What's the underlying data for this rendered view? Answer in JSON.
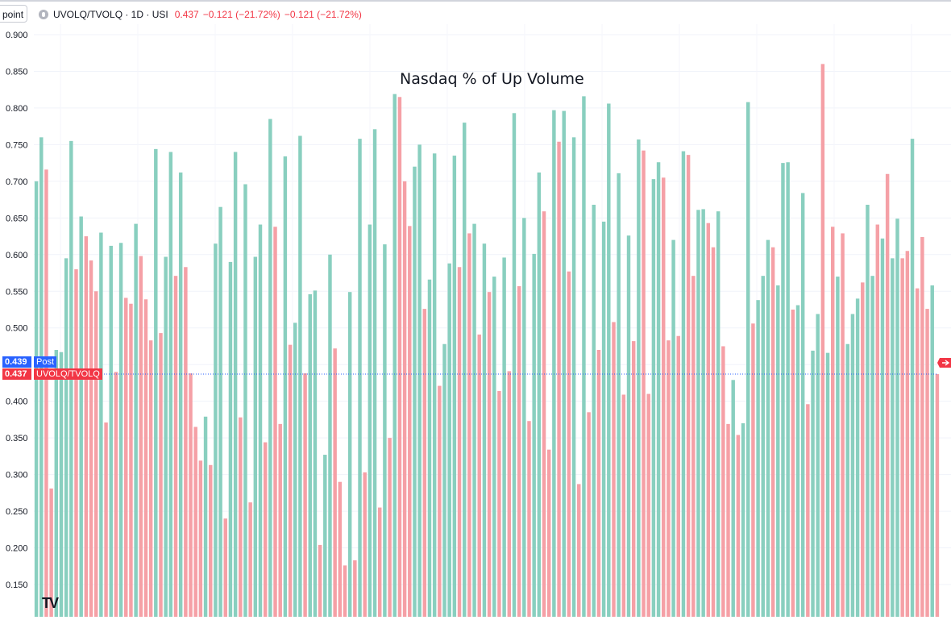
{
  "toolbar": {
    "point_label": "point"
  },
  "header": {
    "symbol": "UVOLQ/TVOLQ · 1D · USI",
    "last_price": "0.437",
    "change": "−0.121 (−21.72%)",
    "change2": "−0.121 (−21.72%)"
  },
  "labels": {
    "post_value": "0.439",
    "post_name": "Post",
    "main_value": "0.437",
    "main_name": "UVOLQ/TVOLQ",
    "logo": "TV"
  },
  "colors": {
    "up": "#89cfbf",
    "down": "#f5a0a6",
    "blue": "#2962ff",
    "red": "#f23645"
  },
  "chart_data": {
    "type": "bar",
    "title": "Nasdaq % of Up Volume",
    "ylim": [
      0.1,
      0.9
    ],
    "yticks": [
      "0.900",
      "0.850",
      "0.800",
      "0.750",
      "0.700",
      "0.650",
      "0.600",
      "0.550",
      "0.500",
      "0.450",
      "0.400",
      "0.350",
      "0.300",
      "0.250",
      "0.200",
      "0.150"
    ],
    "current_value": 0.437,
    "post_value": 0.439,
    "series": [
      {
        "values": [
          0.7,
          0.76,
          0.716,
          0.281,
          0.47,
          0.467,
          0.595,
          0.755,
          0.58,
          0.652,
          0.625,
          0.592,
          0.55,
          0.63,
          0.371,
          0.612,
          0.44,
          0.616,
          0.541,
          0.533,
          0.642,
          0.598,
          0.539,
          0.483,
          0.744,
          0.493,
          0.597,
          0.74,
          0.571,
          0.712,
          0.583,
          0.438,
          0.365,
          0.319,
          0.379,
          0.313,
          0.615,
          0.665,
          0.24,
          0.59,
          0.74,
          0.378,
          0.696,
          0.262,
          0.597,
          0.641,
          0.344,
          0.785,
          0.638,
          0.369,
          0.734,
          0.477,
          0.507,
          0.762,
          0.438,
          0.546,
          0.551,
          0.204,
          0.327,
          0.6,
          0.472,
          0.29,
          0.176,
          0.549,
          0.183,
          0.758,
          0.303,
          0.641,
          0.771,
          0.255,
          0.614,
          0.35,
          0.819,
          0.815,
          0.7,
          0.639,
          0.72,
          0.75,
          0.526,
          0.566,
          0.738,
          0.421,
          0.478,
          0.588,
          0.735,
          0.583,
          0.78,
          0.629,
          0.642,
          0.491,
          0.615,
          0.549,
          0.57,
          0.414,
          0.596,
          0.441,
          0.793,
          0.557,
          0.65,
          0.373,
          0.601,
          0.712,
          0.659,
          0.334,
          0.797,
          0.754,
          0.796,
          0.577,
          0.76,
          0.287,
          0.816,
          0.385,
          0.668,
          0.47,
          0.645,
          0.806,
          0.508,
          0.711,
          0.409,
          0.626,
          0.482,
          0.757,
          0.742,
          0.41,
          0.703,
          0.726,
          0.705,
          0.483,
          0.62,
          0.489,
          0.741,
          0.736,
          0.571,
          0.661,
          0.662,
          0.643,
          0.61,
          0.659,
          0.475,
          0.369,
          0.429,
          0.354,
          0.37,
          0.808,
          0.506,
          0.538,
          0.571,
          0.62,
          0.61,
          0.558,
          0.725,
          0.726,
          0.525,
          0.531,
          0.684,
          0.396,
          0.469,
          0.519,
          0.86,
          0.466,
          0.638,
          0.57,
          0.629,
          0.478,
          0.519,
          0.54,
          0.562,
          0.668,
          0.571,
          0.641,
          0.622,
          0.71,
          0.595,
          0.649,
          0.595,
          0.605,
          0.758,
          0.554,
          0.624,
          0.526,
          0.558,
          0.437
        ]
      }
    ],
    "directions": [
      "up",
      "up",
      "down",
      "down",
      "up",
      "up",
      "up",
      "up",
      "down",
      "up",
      "down",
      "down",
      "down",
      "up",
      "down",
      "up",
      "down",
      "up",
      "down",
      "down",
      "up",
      "down",
      "down",
      "down",
      "up",
      "down",
      "up",
      "up",
      "down",
      "up",
      "down",
      "down",
      "down",
      "down",
      "up",
      "down",
      "up",
      "up",
      "down",
      "up",
      "up",
      "down",
      "up",
      "down",
      "up",
      "up",
      "down",
      "up",
      "down",
      "down",
      "up",
      "down",
      "up",
      "up",
      "down",
      "up",
      "up",
      "down",
      "up",
      "up",
      "down",
      "down",
      "down",
      "up",
      "down",
      "up",
      "down",
      "up",
      "up",
      "down",
      "up",
      "down",
      "up",
      "down",
      "down",
      "down",
      "up",
      "up",
      "down",
      "up",
      "up",
      "down",
      "up",
      "up",
      "up",
      "down",
      "up",
      "down",
      "up",
      "down",
      "up",
      "down",
      "up",
      "down",
      "up",
      "down",
      "up",
      "down",
      "up",
      "down",
      "up",
      "up",
      "down",
      "down",
      "up",
      "down",
      "up",
      "down",
      "up",
      "down",
      "up",
      "down",
      "up",
      "down",
      "up",
      "up",
      "down",
      "up",
      "down",
      "up",
      "down",
      "up",
      "down",
      "down",
      "up",
      "up",
      "down",
      "down",
      "up",
      "down",
      "up",
      "down",
      "down",
      "up",
      "up",
      "down",
      "down",
      "up",
      "down",
      "down",
      "up",
      "down",
      "up",
      "up",
      "down",
      "up",
      "up",
      "up",
      "down",
      "up",
      "up",
      "up",
      "down",
      "up",
      "up",
      "down",
      "up",
      "up",
      "down",
      "up",
      "down",
      "up",
      "down",
      "up",
      "up",
      "up",
      "down",
      "up",
      "up",
      "down",
      "up",
      "down",
      "up",
      "up",
      "down",
      "down",
      "up",
      "down",
      "down",
      "down",
      "up",
      "down"
    ]
  }
}
